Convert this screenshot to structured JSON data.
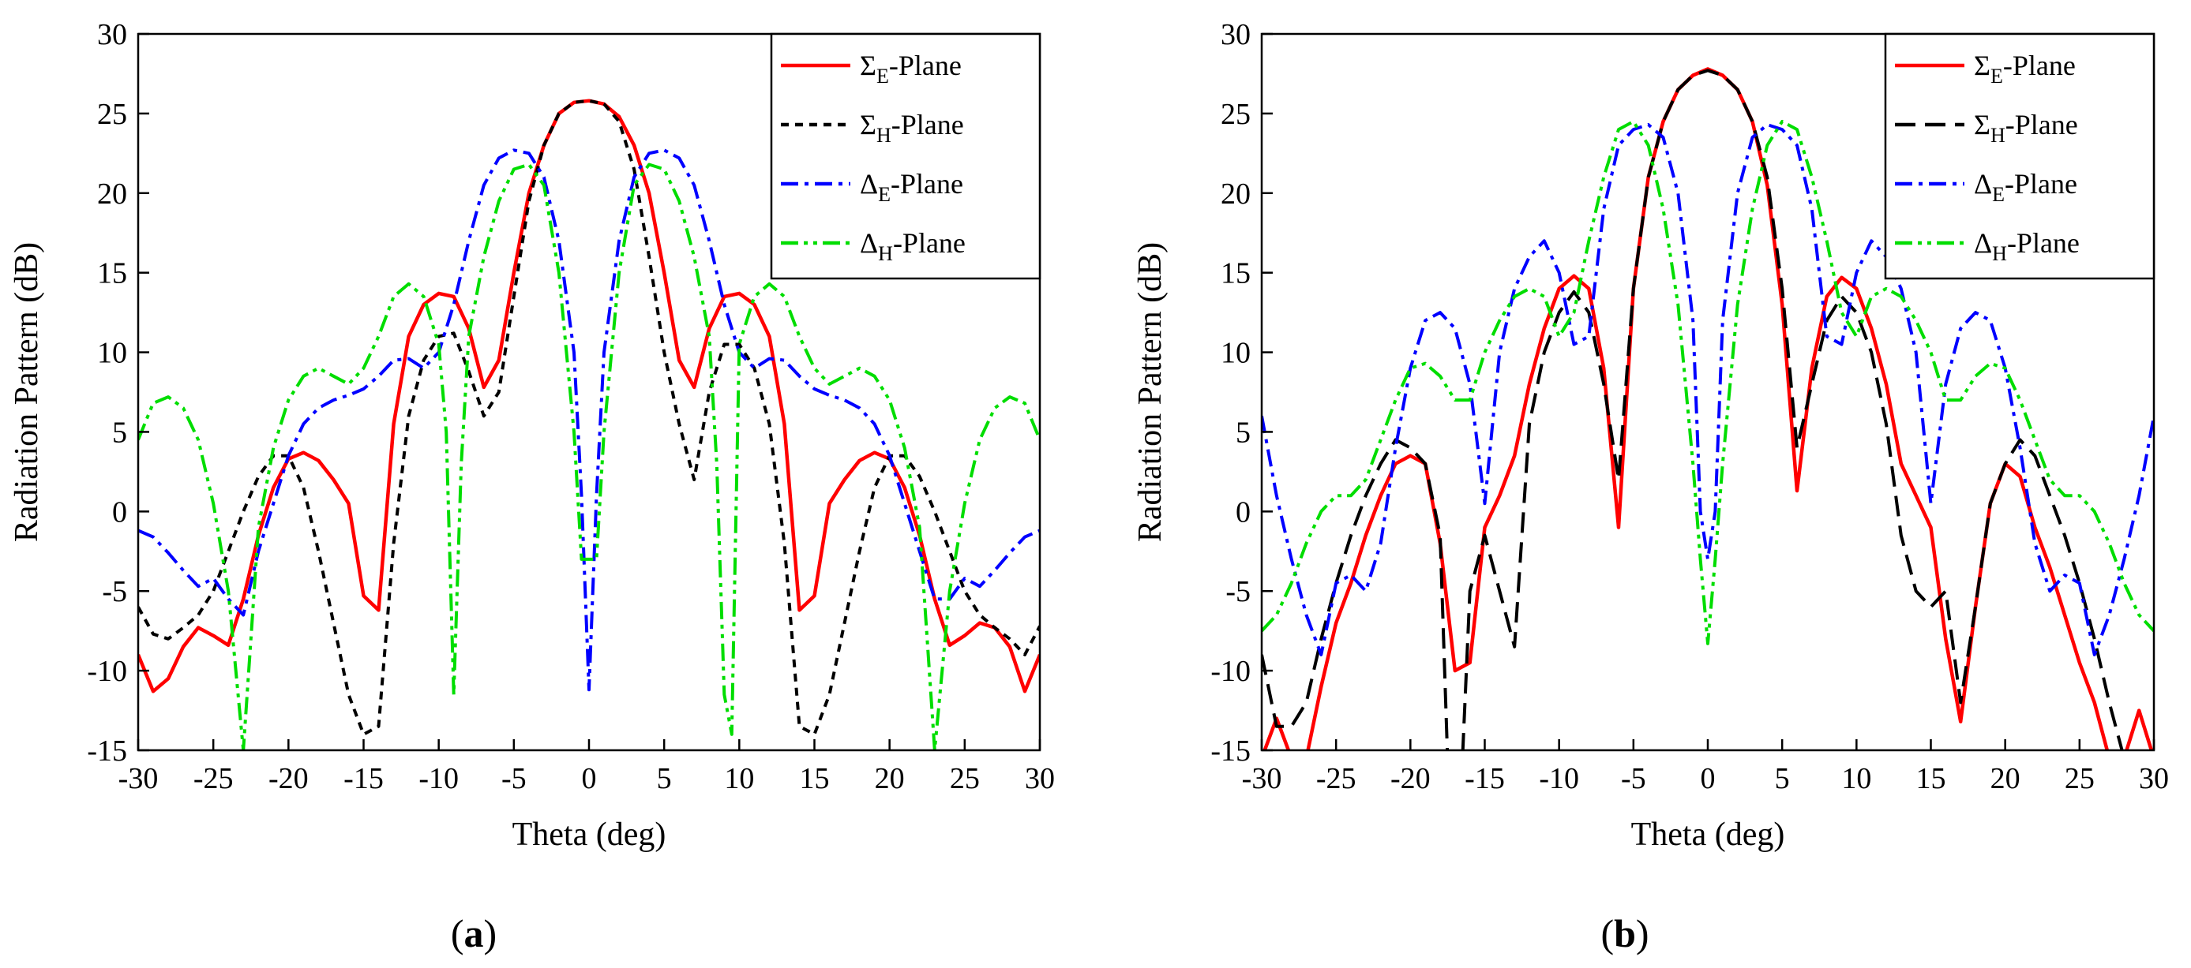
{
  "chart_data": [
    {
      "type": "line",
      "panel_label": "(a)",
      "panel_letter": "a",
      "xlabel": "Theta (deg)",
      "ylabel": "Radiation Pattern (dB)",
      "xlim": [
        -30,
        30
      ],
      "ylim": [
        -15,
        30
      ],
      "xticks": [
        -30,
        -25,
        -20,
        -15,
        -10,
        -5,
        0,
        5,
        10,
        15,
        20,
        25,
        30
      ],
      "yticks": [
        -15,
        -10,
        -5,
        0,
        5,
        10,
        15,
        20,
        25,
        30
      ],
      "legend_position": "top-right",
      "series": [
        {
          "symbol": "Σ",
          "sub": "E",
          "suffix": "-Plane",
          "color": "#ff0000",
          "dash": "solid",
          "x": [
            -30,
            -29,
            -28,
            -27,
            -26,
            -25,
            -24,
            -23,
            -22,
            -21,
            -20,
            -19,
            -18,
            -17,
            -16,
            -15,
            -14,
            -13,
            -12,
            -11,
            -10,
            -9,
            -8,
            -7,
            -6,
            -5,
            -4,
            -3,
            -2,
            -1,
            0,
            1,
            2,
            3,
            4,
            5,
            6,
            7,
            8,
            9,
            10,
            11,
            12,
            13,
            14,
            15,
            16,
            17,
            18,
            19,
            20,
            21,
            22,
            23,
            24,
            25,
            26,
            27,
            28,
            29,
            30
          ],
          "y": [
            -9,
            -11.3,
            -10.5,
            -8.5,
            -7.3,
            -7.8,
            -8.4,
            -5.5,
            -1.5,
            1.5,
            3.3,
            3.7,
            3.2,
            2,
            0.5,
            -5.3,
            -6.2,
            5.5,
            11,
            13,
            13.7,
            13.5,
            11.5,
            7.8,
            9.5,
            15,
            20,
            23,
            25,
            25.7,
            25.8,
            25.6,
            24.8,
            23,
            20,
            15,
            9.5,
            7.8,
            11.5,
            13.5,
            13.7,
            13,
            11,
            5.5,
            -6.2,
            -5.3,
            0.5,
            2,
            3.2,
            3.7,
            3.3,
            1.5,
            -1.5,
            -5.5,
            -8.4,
            -7.8,
            -7,
            -7.3,
            -8.5,
            -11.3,
            -9
          ]
        },
        {
          "symbol": "Σ",
          "sub": "H",
          "suffix": "-Plane",
          "color": "#000000",
          "dash": "short",
          "x": [
            -30,
            -29,
            -28,
            -27,
            -26,
            -25,
            -24,
            -23,
            -22,
            -21,
            -20,
            -19,
            -18,
            -17,
            -16,
            -15,
            -14,
            -13,
            -12,
            -11,
            -10,
            -9,
            -8,
            -7,
            -6,
            -5,
            -4,
            -3,
            -2,
            -1,
            0,
            1,
            2,
            3,
            4,
            5,
            6,
            7,
            8,
            9,
            10,
            11,
            12,
            13,
            14,
            15,
            16,
            17,
            18,
            19,
            20,
            21,
            22,
            23,
            24,
            25,
            26,
            27,
            28,
            29,
            30
          ],
          "y": [
            -6,
            -7.7,
            -8,
            -7.3,
            -6.5,
            -5,
            -2.5,
            0,
            2.2,
            3.5,
            3.5,
            1.5,
            -2.5,
            -7,
            -11.5,
            -14,
            -13.5,
            -2,
            6,
            9.5,
            11,
            11.2,
            8.8,
            6,
            7.5,
            13.5,
            19.5,
            23,
            25,
            25.7,
            25.8,
            25.6,
            24.5,
            21.5,
            16,
            10,
            5.5,
            2,
            7.5,
            10.5,
            10.5,
            9,
            5.5,
            -2,
            -13.5,
            -14,
            -11.5,
            -7,
            -2.5,
            1.5,
            3.5,
            3.5,
            2.2,
            0,
            -2.5,
            -5,
            -6.5,
            -7.3,
            -8,
            -9,
            -7.2
          ]
        },
        {
          "symbol": "Δ",
          "sub": "E",
          "suffix": "-Plane",
          "color": "#0000ff",
          "dash": "dashdot",
          "x": [
            -30,
            -29,
            -28,
            -27,
            -26,
            -25,
            -24,
            -23,
            -22,
            -21,
            -20,
            -19,
            -18,
            -17,
            -16,
            -15,
            -14,
            -13,
            -12,
            -11,
            -10,
            -9,
            -8,
            -7,
            -6,
            -5,
            -4,
            -3,
            -2,
            -1,
            -0.5,
            0,
            0.5,
            1,
            2,
            3,
            4,
            5,
            6,
            7,
            8,
            9,
            10,
            11,
            12,
            13,
            14,
            15,
            16,
            17,
            18,
            19,
            20,
            21,
            22,
            23,
            24,
            25,
            26,
            27,
            28,
            29,
            30
          ],
          "y": [
            -1.2,
            -1.6,
            -2.6,
            -3.7,
            -4.7,
            -4.2,
            -5.5,
            -6.5,
            -2.5,
            0.5,
            3.5,
            5.5,
            6.5,
            7,
            7.3,
            7.7,
            8.5,
            9.5,
            9.6,
            9,
            10,
            13,
            17,
            20.5,
            22.2,
            22.7,
            22.5,
            21,
            17,
            10,
            1,
            -11.2,
            1,
            10,
            17,
            21,
            22.5,
            22.7,
            22.2,
            20.5,
            17,
            13,
            10,
            9,
            9.6,
            9.5,
            8.5,
            7.7,
            7.3,
            7,
            6.5,
            5.5,
            3.5,
            0.5,
            -2.5,
            -5.5,
            -5.5,
            -4.2,
            -4.7,
            -3.7,
            -2.6,
            -1.6,
            -1.2
          ]
        },
        {
          "symbol": "Δ",
          "sub": "H",
          "suffix": "-Plane",
          "color": "#00dd00",
          "dash": "dashdotdot",
          "x": [
            -30,
            -29,
            -28,
            -27,
            -26,
            -25,
            -24,
            -23.5,
            -23,
            -22.5,
            -22,
            -21,
            -20,
            -19,
            -18,
            -17,
            -16,
            -15,
            -14,
            -13,
            -12,
            -11,
            -10,
            -9.5,
            -9,
            -8.5,
            -8,
            -7,
            -6,
            -5,
            -4,
            -3,
            -2,
            -1,
            -0.5,
            0,
            0.5,
            1,
            2,
            3,
            4,
            5,
            6,
            7,
            8,
            8.5,
            9,
            9.5,
            10,
            11,
            12,
            13,
            14,
            15,
            16,
            17,
            18,
            19,
            20,
            21,
            22,
            22.5,
            23,
            23.5,
            24,
            25,
            26,
            27,
            28,
            29,
            30
          ],
          "y": [
            4.5,
            6.8,
            7.2,
            6.5,
            4.5,
            0.5,
            -5,
            -10,
            -15,
            -8,
            -1,
            4,
            7,
            8.5,
            9,
            8.5,
            8,
            9,
            11,
            13.5,
            14.3,
            13.5,
            10.5,
            5,
            -11.5,
            3,
            11,
            16,
            19.5,
            21.5,
            21.8,
            20.5,
            15,
            5,
            -3,
            -3,
            -3,
            5,
            15,
            20.5,
            21.8,
            21.5,
            19.5,
            16,
            11,
            3,
            -11.5,
            -14,
            10.5,
            13.5,
            14.3,
            13.5,
            11,
            9,
            8,
            8.5,
            9,
            8.5,
            7,
            4,
            -1,
            -8,
            -15,
            -10,
            -5,
            0.5,
            4.5,
            6.5,
            7.2,
            6.8,
            4.5
          ]
        }
      ]
    },
    {
      "type": "line",
      "panel_label": "(b)",
      "panel_letter": "b",
      "xlabel": "Theta (deg)",
      "ylabel": "Radiation Pattern (dB)",
      "xlim": [
        -30,
        30
      ],
      "ylim": [
        -15,
        30
      ],
      "xticks": [
        -30,
        -25,
        -20,
        -15,
        -10,
        -5,
        0,
        5,
        10,
        15,
        20,
        25,
        30
      ],
      "yticks": [
        -15,
        -10,
        -5,
        0,
        5,
        10,
        15,
        20,
        25,
        30
      ],
      "legend_position": "top-right",
      "series": [
        {
          "symbol": "Σ",
          "sub": "E",
          "suffix": "-Plane",
          "color": "#ff0000",
          "dash": "solid",
          "x": [
            -30,
            -29,
            -28,
            -27,
            -26,
            -25,
            -24,
            -23,
            -22,
            -21,
            -20,
            -19,
            -18,
            -17,
            -16,
            -15,
            -14,
            -13,
            -12,
            -11,
            -10,
            -9,
            -8,
            -7,
            -6,
            -5,
            -4,
            -3,
            -2,
            -1,
            0,
            1,
            2,
            3,
            4,
            5,
            6,
            7,
            8,
            9,
            10,
            11,
            12,
            13,
            14,
            15,
            16,
            17,
            18,
            19,
            20,
            21,
            22,
            23,
            24,
            25,
            26,
            27,
            28,
            29,
            30
          ],
          "y": [
            -15.5,
            -13,
            -15.5,
            -15.5,
            -11,
            -7,
            -4.5,
            -1.5,
            1,
            3,
            3.5,
            3,
            -2,
            -10,
            -9.5,
            -1,
            1,
            3.5,
            8,
            11.5,
            14,
            14.8,
            14,
            9,
            -1,
            14,
            21,
            24.5,
            26.5,
            27.4,
            27.8,
            27.4,
            26.5,
            24.5,
            20.5,
            13,
            1.3,
            9,
            13.5,
            14.7,
            14,
            11.5,
            8,
            3,
            1,
            -1,
            -8,
            -13.2,
            -6,
            0.5,
            3,
            2.2,
            -1,
            -3.5,
            -6.5,
            -9.5,
            -12,
            -15.5,
            -15.5,
            -12.5,
            -15.5
          ]
        },
        {
          "symbol": "Σ",
          "sub": "H",
          "suffix": "-Plane",
          "color": "#000000",
          "dash": "long",
          "x": [
            -30,
            -29,
            -28,
            -27,
            -26,
            -25,
            -24,
            -23,
            -22,
            -21,
            -20,
            -19,
            -18,
            -17.5,
            -17,
            -16.5,
            -16,
            -15,
            -14,
            -13,
            -12,
            -11,
            -10,
            -9,
            -8,
            -7,
            -6,
            -5,
            -4,
            -3,
            -2,
            -1,
            0,
            1,
            2,
            3,
            4,
            5,
            6,
            7,
            8,
            9,
            10,
            11,
            12,
            13,
            14,
            15,
            16,
            17,
            18,
            19,
            20,
            21,
            22,
            23,
            24,
            25,
            26,
            27,
            28,
            29,
            30
          ],
          "y": [
            -9,
            -13.5,
            -13.5,
            -12,
            -8,
            -4.5,
            -1.5,
            1,
            3,
            4.5,
            4,
            3,
            -1.5,
            -15.5,
            -15.5,
            -15.5,
            -5,
            -1.5,
            -5,
            -8.5,
            5.5,
            10,
            12.5,
            13.8,
            12.5,
            8,
            2,
            14,
            21,
            24.5,
            26.5,
            27.4,
            27.7,
            27.4,
            26.5,
            24.5,
            21,
            14,
            4,
            8,
            12,
            13.5,
            12.5,
            10,
            5.5,
            -1.5,
            -5,
            -6,
            -5,
            -12,
            -6,
            0.5,
            3,
            4.5,
            3.5,
            1,
            -1.5,
            -4.5,
            -8,
            -12,
            -15.5,
            -15.5,
            -15
          ]
        },
        {
          "symbol": "Δ",
          "sub": "E",
          "suffix": "-Plane",
          "color": "#0000ff",
          "dash": "dashdot",
          "x": [
            -30,
            -29,
            -28,
            -27,
            -26,
            -25,
            -24,
            -23,
            -22,
            -21,
            -20,
            -19,
            -18,
            -17,
            -16,
            -15,
            -14,
            -13,
            -12,
            -11,
            -10,
            -9,
            -8,
            -7,
            -6,
            -5,
            -4,
            -3,
            -2,
            -1,
            -0.5,
            0,
            0.5,
            1,
            2,
            3,
            4,
            5,
            6,
            7,
            8,
            9,
            10,
            11,
            12,
            13,
            14,
            15,
            16,
            17,
            18,
            19,
            20,
            21,
            22,
            23,
            24,
            25,
            26,
            27,
            28,
            29,
            30
          ],
          "y": [
            6,
            1,
            -3,
            -6.5,
            -9,
            -4.5,
            -4,
            -5,
            -2,
            4,
            9,
            12,
            12.5,
            11.5,
            8,
            0.5,
            10,
            14,
            16,
            17,
            15,
            10.5,
            11,
            19,
            23,
            24,
            24.3,
            23.5,
            20,
            12,
            0,
            -3,
            0,
            12,
            20,
            23.5,
            24.3,
            24,
            23,
            19,
            11,
            10.5,
            15,
            17,
            16,
            14,
            10,
            0.5,
            8,
            11.5,
            12.5,
            12,
            9,
            4,
            -2,
            -5,
            -4,
            -4.5,
            -9,
            -6.5,
            -3,
            1,
            6
          ]
        },
        {
          "symbol": "Δ",
          "sub": "H",
          "suffix": "-Plane",
          "color": "#00dd00",
          "dash": "dashdotdot",
          "x": [
            -30,
            -29,
            -28,
            -27,
            -26,
            -25,
            -24,
            -23,
            -22,
            -21,
            -20,
            -19,
            -18,
            -17,
            -16,
            -15,
            -14,
            -13,
            -12,
            -11,
            -10,
            -9,
            -8,
            -7,
            -6,
            -5,
            -4,
            -3,
            -2,
            -1,
            -0.5,
            0,
            0.5,
            1,
            2,
            3,
            4,
            5,
            6,
            7,
            8,
            9,
            10,
            11,
            12,
            13,
            14,
            15,
            16,
            17,
            18,
            19,
            20,
            21,
            22,
            23,
            24,
            25,
            26,
            27,
            28,
            29,
            30
          ],
          "y": [
            -7.5,
            -6.5,
            -4.5,
            -2,
            0,
            1,
            1,
            2,
            4.5,
            7,
            9,
            9.3,
            8.5,
            7,
            7,
            10,
            12,
            13.5,
            14,
            13.5,
            11,
            12.5,
            17,
            21,
            24,
            24.5,
            23,
            19,
            13,
            3,
            -3,
            -8.3,
            -3,
            3,
            13,
            19,
            23,
            24.5,
            24,
            21,
            17,
            12.5,
            11,
            13.5,
            14,
            13.5,
            12,
            10,
            7,
            7,
            8.5,
            9.3,
            9,
            7,
            4.5,
            2,
            1,
            1,
            0,
            -2,
            -4.5,
            -6.5,
            -7.5
          ]
        }
      ]
    }
  ]
}
